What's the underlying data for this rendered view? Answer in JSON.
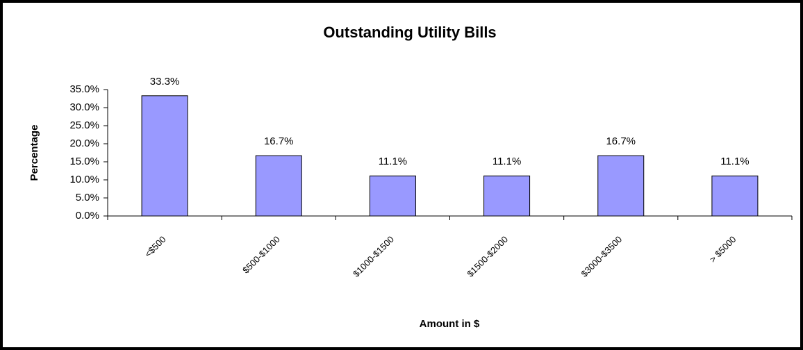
{
  "chart_data": {
    "type": "bar",
    "title": "Outstanding Utility Bills",
    "x_label": "Amount in $",
    "y_label": "Percentage",
    "categories": [
      "<$500",
      "$500-$1000",
      "$1000-$1500",
      "$1500-$2000",
      "$3000-$3500",
      "> $5000"
    ],
    "values": [
      33.3,
      16.7,
      11.1,
      11.1,
      16.7,
      11.1
    ],
    "value_labels": [
      "33.3%",
      "16.7%",
      "11.1%",
      "11.1%",
      "16.7%",
      "11.1%"
    ],
    "color": "#9999ff",
    "ylim": [
      0,
      35
    ],
    "yticks": [
      {
        "value": 0,
        "label": "0.0%"
      },
      {
        "value": 5,
        "label": "5.0%"
      },
      {
        "value": 10,
        "label": "10.0%"
      },
      {
        "value": 15,
        "label": "15.0%"
      },
      {
        "value": 20,
        "label": "20.0%"
      },
      {
        "value": 25,
        "label": "25.0%"
      },
      {
        "value": 30,
        "label": "30.0%"
      },
      {
        "value": 35,
        "label": "35.0%"
      }
    ],
    "grid": false
  }
}
